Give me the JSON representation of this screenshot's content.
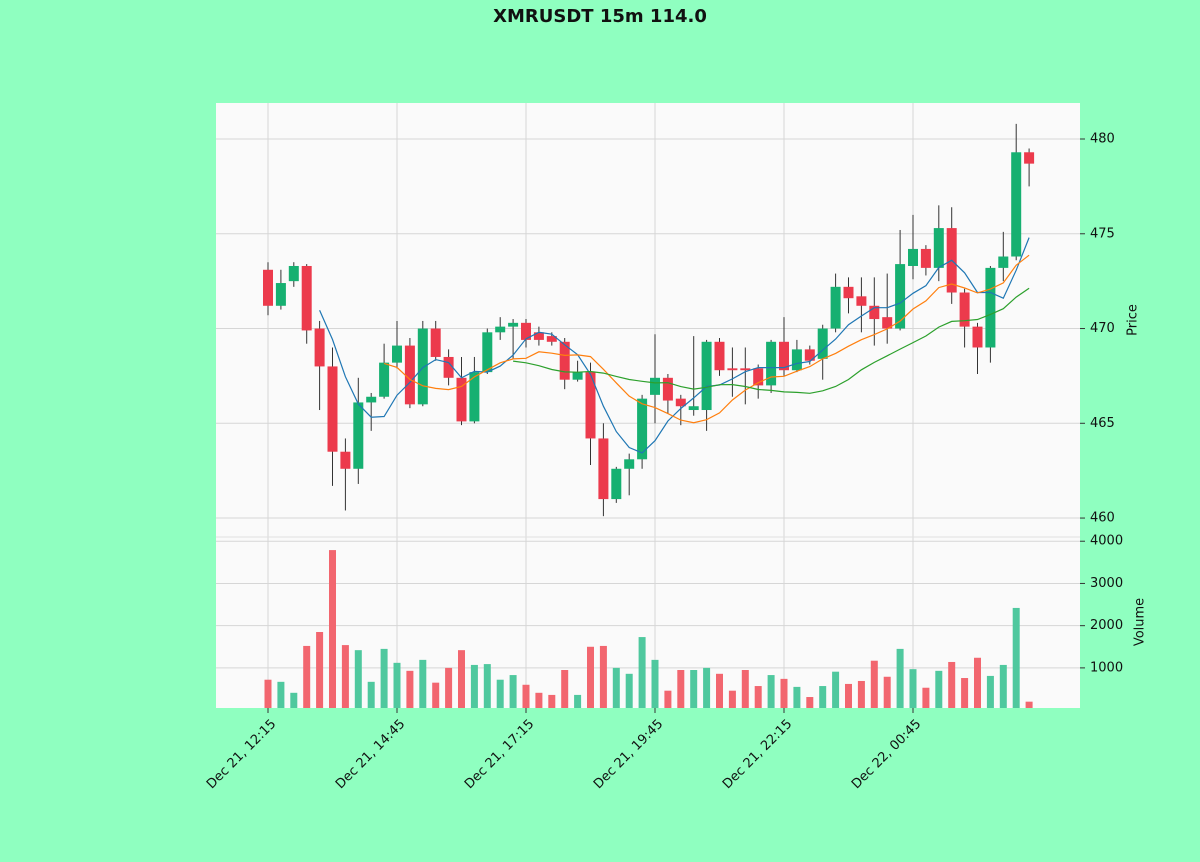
{
  "chart_data": {
    "type": "candlestick",
    "title": "XMRUSDT 15m 114.0",
    "ylabel": "Price",
    "volume_label": "Volume",
    "categories": [
      "Dec 21, 12:15",
      null,
      null,
      null,
      null,
      null,
      null,
      null,
      null,
      null,
      "Dec 21, 14:45",
      null,
      null,
      null,
      null,
      null,
      null,
      null,
      null,
      null,
      "Dec 21, 17:15",
      null,
      null,
      null,
      null,
      null,
      null,
      null,
      null,
      null,
      "Dec 21, 19:45",
      null,
      null,
      null,
      null,
      null,
      null,
      null,
      null,
      null,
      "Dec 21, 22:15",
      null,
      null,
      null,
      null,
      null,
      null,
      null,
      null,
      null,
      "Dec 22, 00:45",
      null,
      null,
      null,
      null,
      null,
      null,
      null,
      null,
      null
    ],
    "open": [
      473.1,
      471.2,
      472.5,
      473.3,
      470.0,
      468.0,
      463.5,
      462.6,
      466.1,
      466.4,
      468.2,
      469.1,
      466.0,
      470.0,
      468.5,
      467.4,
      465.1,
      467.7,
      469.8,
      470.1,
      470.3,
      469.8,
      469.6,
      469.3,
      467.3,
      467.7,
      464.2,
      461.0,
      462.6,
      463.1,
      466.5,
      467.4,
      466.3,
      465.7,
      465.7,
      469.3,
      467.9,
      467.9,
      467.9,
      467.0,
      469.3,
      467.8,
      468.9,
      468.4,
      470.0,
      472.2,
      471.7,
      471.2,
      470.6,
      470.0,
      473.3,
      474.2,
      473.2,
      475.3,
      471.9,
      470.1,
      469.0,
      473.2,
      473.8,
      479.3
    ],
    "high": [
      473.5,
      473.1,
      473.5,
      473.4,
      470.4,
      469.0,
      464.2,
      467.4,
      466.6,
      469.2,
      470.4,
      469.5,
      470.4,
      470.4,
      468.9,
      468.5,
      468.5,
      470.0,
      470.6,
      470.5,
      470.5,
      470.1,
      469.8,
      469.5,
      468.3,
      468.2,
      465.0,
      462.7,
      463.4,
      466.5,
      469.7,
      467.6,
      466.5,
      469.6,
      469.4,
      469.5,
      469.0,
      469.0,
      468.1,
      469.4,
      470.6,
      469.4,
      469.1,
      470.2,
      472.9,
      472.7,
      472.7,
      472.7,
      472.9,
      475.2,
      476.0,
      474.4,
      476.5,
      476.4,
      472.1,
      470.3,
      473.3,
      475.1,
      480.8,
      479.5
    ],
    "low": [
      470.7,
      471.0,
      472.2,
      469.2,
      465.7,
      461.7,
      460.4,
      461.8,
      464.6,
      466.3,
      467.9,
      465.8,
      465.9,
      468.3,
      467.0,
      464.9,
      465.0,
      467.6,
      469.4,
      468.4,
      469.0,
      469.1,
      469.1,
      466.8,
      467.2,
      462.8,
      460.1,
      460.8,
      461.2,
      462.6,
      465.0,
      465.5,
      464.9,
      465.4,
      464.6,
      467.5,
      466.4,
      466.0,
      466.3,
      466.6,
      467.5,
      467.7,
      468.1,
      467.3,
      469.8,
      470.8,
      469.8,
      469.1,
      469.2,
      469.9,
      472.6,
      472.8,
      472.5,
      471.3,
      469.0,
      467.6,
      468.2,
      472.5,
      473.6,
      477.5
    ],
    "close": [
      471.2,
      472.4,
      473.3,
      469.9,
      468.0,
      463.5,
      462.6,
      466.1,
      466.4,
      468.2,
      469.1,
      466.0,
      470.0,
      468.5,
      467.4,
      465.1,
      467.7,
      469.8,
      470.1,
      470.3,
      469.4,
      469.4,
      469.3,
      467.3,
      467.7,
      464.2,
      461.0,
      462.6,
      463.1,
      466.3,
      467.4,
      466.2,
      465.9,
      465.9,
      469.3,
      467.8,
      467.8,
      467.8,
      467.0,
      469.3,
      467.8,
      468.9,
      468.3,
      470.0,
      472.2,
      471.6,
      471.2,
      470.5,
      470.0,
      473.4,
      474.2,
      473.2,
      475.3,
      471.9,
      470.1,
      469.0,
      473.2,
      473.8,
      479.3,
      478.7
    ],
    "volume": [
      720,
      670,
      410,
      1520,
      1850,
      3790,
      1540,
      1420,
      670,
      1450,
      1120,
      930,
      1190,
      650,
      1000,
      1420,
      1070,
      1090,
      720,
      830,
      600,
      410,
      360,
      950,
      360,
      1500,
      1520,
      1000,
      860,
      1730,
      1190,
      460,
      950,
      950,
      1000,
      860,
      460,
      950,
      570,
      830,
      740,
      550,
      310,
      570,
      910,
      620,
      690,
      1170,
      790,
      1450,
      970,
      530,
      930,
      1140,
      760,
      1240,
      810,
      1070,
      2420,
      200
    ],
    "ylim": [
      459.0,
      481.9
    ],
    "yticks": [
      460,
      465,
      470,
      475,
      480
    ],
    "volume_ylim": [
      50,
      4100
    ],
    "volume_yticks": [
      1000,
      2000,
      3000,
      4000
    ],
    "up_color": "#16b071",
    "down_color": "#ec3a4c",
    "up_volume_color": "#4fc89e",
    "down_volume_color": "#f2666f",
    "mav": [
      5,
      10,
      20
    ],
    "mav_colors": [
      "#1f77b4",
      "#ff7f0e",
      "#2ca02c"
    ],
    "grid": true
  }
}
